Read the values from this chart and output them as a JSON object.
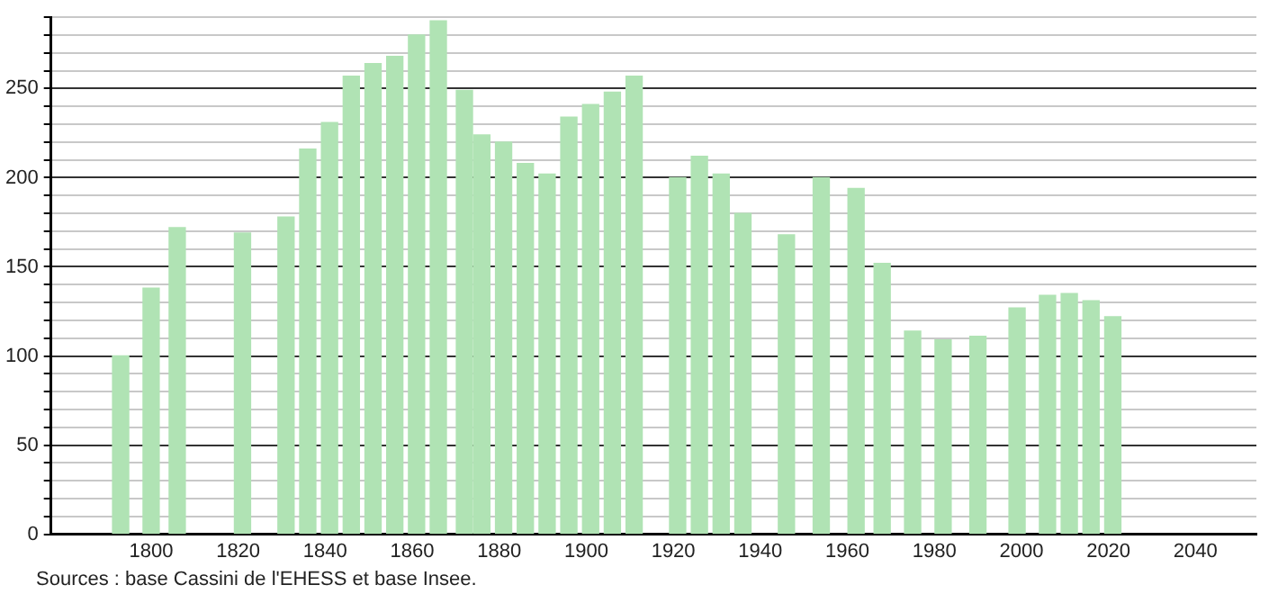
{
  "chart_data": {
    "type": "bar",
    "annotations": [
      "Sources : base Cassini de l'EHESS et base Insee."
    ],
    "x": [
      1793,
      1800,
      1806,
      1821,
      1831,
      1836,
      1841,
      1846,
      1851,
      1856,
      1861,
      1866,
      1872,
      1876,
      1881,
      1886,
      1891,
      1896,
      1901,
      1906,
      1911,
      1921,
      1926,
      1931,
      1936,
      1946,
      1954,
      1962,
      1968,
      1975,
      1982,
      1990,
      1999,
      2006,
      2011,
      2016,
      2021
    ],
    "values": [
      100,
      138,
      172,
      169,
      178,
      216,
      231,
      257,
      264,
      268,
      280,
      288,
      249,
      224,
      220,
      208,
      202,
      234,
      241,
      248,
      257,
      200,
      212,
      202,
      180,
      168,
      200,
      194,
      152,
      114,
      109,
      111,
      127,
      134,
      135,
      131,
      122
    ],
    "color": "#b0e3b4",
    "xlim": [
      1777,
      2054
    ],
    "xticks": [
      1800,
      1820,
      1840,
      1860,
      1880,
      1900,
      1920,
      1940,
      1960,
      1980,
      2000,
      2020,
      2040
    ],
    "ylim": [
      0,
      290
    ],
    "yticks": [
      0,
      {
        "value": 10,
        "label": null
      },
      {
        "value": 20,
        "label": null
      },
      {
        "value": 30,
        "label": null
      },
      {
        "value": 40,
        "label": null
      },
      50,
      {
        "value": 60,
        "label": null
      },
      {
        "value": 70,
        "label": null
      },
      {
        "value": 80,
        "label": null
      },
      {
        "value": 90,
        "label": null
      },
      100,
      {
        "value": 110,
        "label": null
      },
      {
        "value": 120,
        "label": null
      },
      {
        "value": 130,
        "label": null
      },
      {
        "value": 140,
        "label": null
      },
      150,
      {
        "value": 160,
        "label": null
      },
      {
        "value": 170,
        "label": null
      },
      {
        "value": 180,
        "label": null
      },
      {
        "value": 190,
        "label": null
      },
      200,
      {
        "value": 210,
        "label": null
      },
      {
        "value": 220,
        "label": null
      },
      {
        "value": 230,
        "label": null
      },
      {
        "value": 240,
        "label": null
      },
      250,
      {
        "value": 260,
        "label": null
      },
      {
        "value": 270,
        "label": null
      },
      {
        "value": 280,
        "label": null
      },
      {
        "value": 290,
        "label": null
      }
    ],
    "grid": "y",
    "legend": false
  }
}
